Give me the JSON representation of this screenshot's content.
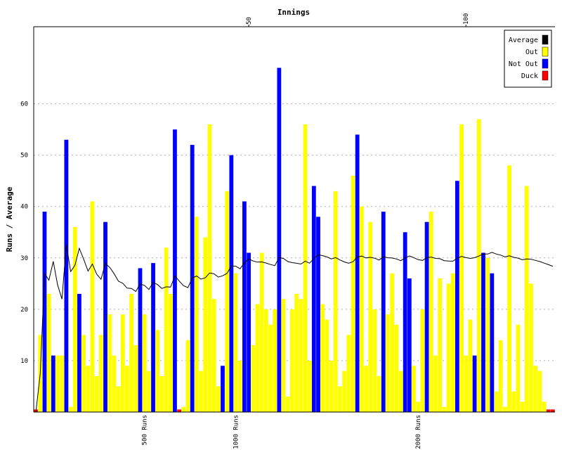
{
  "chart_data": {
    "type": "bar",
    "title": "Innings",
    "ylabel": "Runs / Average",
    "xlabel": "",
    "ylim": [
      0,
      75
    ],
    "yticks": [
      10,
      20,
      30,
      40,
      50,
      60
    ],
    "top_axis_ticks": [
      50,
      100
    ],
    "bottom_axis_markers": [
      {
        "label": "500 Runs",
        "innings": 26
      },
      {
        "label": "1000 Runs",
        "innings": 47
      },
      {
        "label": "2000 Runs",
        "innings": 89
      }
    ],
    "grid": true,
    "legend_position": "top-right",
    "legend": [
      {
        "label": "Average",
        "color": "#000000"
      },
      {
        "label": "Out",
        "color": "#ffff00"
      },
      {
        "label": "Not Out",
        "color": "#0000ff"
      },
      {
        "label": "Duck",
        "color": "#ff0000"
      }
    ],
    "colors": {
      "Out": "#ffff00",
      "Not Out": "#0000ff",
      "Duck": "#ff0000",
      "Average": "#000000"
    },
    "innings": [
      {
        "runs": 0.5,
        "status": "Duck"
      },
      {
        "runs": 15,
        "status": "Out"
      },
      {
        "runs": 39,
        "status": "Not Out"
      },
      {
        "runs": 23,
        "status": "Out"
      },
      {
        "runs": 11,
        "status": "Not Out"
      },
      {
        "runs": 11,
        "status": "Out"
      },
      {
        "runs": 11,
        "status": "Out"
      },
      {
        "runs": 53,
        "status": "Not Out"
      },
      {
        "runs": 1,
        "status": "Out"
      },
      {
        "runs": 36,
        "status": "Out"
      },
      {
        "runs": 23,
        "status": "Not Out"
      },
      {
        "runs": 15,
        "status": "Out"
      },
      {
        "runs": 9,
        "status": "Out"
      },
      {
        "runs": 41,
        "status": "Out"
      },
      {
        "runs": 7,
        "status": "Out"
      },
      {
        "runs": 15,
        "status": "Out"
      },
      {
        "runs": 37,
        "status": "Not Out"
      },
      {
        "runs": 19,
        "status": "Out"
      },
      {
        "runs": 11,
        "status": "Out"
      },
      {
        "runs": 5,
        "status": "Out"
      },
      {
        "runs": 19,
        "status": "Out"
      },
      {
        "runs": 9,
        "status": "Out"
      },
      {
        "runs": 23,
        "status": "Out"
      },
      {
        "runs": 13,
        "status": "Out"
      },
      {
        "runs": 28,
        "status": "Not Out"
      },
      {
        "runs": 19,
        "status": "Out"
      },
      {
        "runs": 8,
        "status": "Out"
      },
      {
        "runs": 29,
        "status": "Not Out"
      },
      {
        "runs": 16,
        "status": "Out"
      },
      {
        "runs": 7,
        "status": "Out"
      },
      {
        "runs": 32,
        "status": "Out"
      },
      {
        "runs": 23,
        "status": "Out"
      },
      {
        "runs": 55,
        "status": "Not Out"
      },
      {
        "runs": 0.5,
        "status": "Duck"
      },
      {
        "runs": 1,
        "status": "Out"
      },
      {
        "runs": 14,
        "status": "Out"
      },
      {
        "runs": 52,
        "status": "Not Out"
      },
      {
        "runs": 38,
        "status": "Out"
      },
      {
        "runs": 8,
        "status": "Out"
      },
      {
        "runs": 34,
        "status": "Out"
      },
      {
        "runs": 56,
        "status": "Out"
      },
      {
        "runs": 22,
        "status": "Out"
      },
      {
        "runs": 5,
        "status": "Out"
      },
      {
        "runs": 9,
        "status": "Not Out"
      },
      {
        "runs": 43,
        "status": "Out"
      },
      {
        "runs": 50,
        "status": "Not Out"
      },
      {
        "runs": 27,
        "status": "Out"
      },
      {
        "runs": 10,
        "status": "Out"
      },
      {
        "runs": 41,
        "status": "Not Out"
      },
      {
        "runs": 31,
        "status": "Not Out"
      },
      {
        "runs": 13,
        "status": "Out"
      },
      {
        "runs": 21,
        "status": "Out"
      },
      {
        "runs": 31,
        "status": "Out"
      },
      {
        "runs": 20,
        "status": "Out"
      },
      {
        "runs": 17,
        "status": "Out"
      },
      {
        "runs": 20,
        "status": "Out"
      },
      {
        "runs": 67,
        "status": "Not Out"
      },
      {
        "runs": 22,
        "status": "Out"
      },
      {
        "runs": 3,
        "status": "Out"
      },
      {
        "runs": 20,
        "status": "Out"
      },
      {
        "runs": 23,
        "status": "Out"
      },
      {
        "runs": 22,
        "status": "Out"
      },
      {
        "runs": 56,
        "status": "Out"
      },
      {
        "runs": 10,
        "status": "Out"
      },
      {
        "runs": 44,
        "status": "Not Out"
      },
      {
        "runs": 38,
        "status": "Not Out"
      },
      {
        "runs": 21,
        "status": "Out"
      },
      {
        "runs": 18,
        "status": "Out"
      },
      {
        "runs": 10,
        "status": "Out"
      },
      {
        "runs": 43,
        "status": "Out"
      },
      {
        "runs": 5,
        "status": "Out"
      },
      {
        "runs": 8,
        "status": "Out"
      },
      {
        "runs": 15,
        "status": "Out"
      },
      {
        "runs": 46,
        "status": "Out"
      },
      {
        "runs": 54,
        "status": "Not Out"
      },
      {
        "runs": 40,
        "status": "Out"
      },
      {
        "runs": 9,
        "status": "Out"
      },
      {
        "runs": 37,
        "status": "Out"
      },
      {
        "runs": 20,
        "status": "Out"
      },
      {
        "runs": 7,
        "status": "Out"
      },
      {
        "runs": 39,
        "status": "Not Out"
      },
      {
        "runs": 19,
        "status": "Out"
      },
      {
        "runs": 27,
        "status": "Out"
      },
      {
        "runs": 17,
        "status": "Out"
      },
      {
        "runs": 8,
        "status": "Out"
      },
      {
        "runs": 35,
        "status": "Not Out"
      },
      {
        "runs": 26,
        "status": "Not Out"
      },
      {
        "runs": 9,
        "status": "Out"
      },
      {
        "runs": 2,
        "status": "Out"
      },
      {
        "runs": 20,
        "status": "Out"
      },
      {
        "runs": 37,
        "status": "Not Out"
      },
      {
        "runs": 39,
        "status": "Out"
      },
      {
        "runs": 11,
        "status": "Out"
      },
      {
        "runs": 26,
        "status": "Out"
      },
      {
        "runs": 1,
        "status": "Out"
      },
      {
        "runs": 25,
        "status": "Out"
      },
      {
        "runs": 27,
        "status": "Out"
      },
      {
        "runs": 45,
        "status": "Not Out"
      },
      {
        "runs": 56,
        "status": "Out"
      },
      {
        "runs": 11,
        "status": "Out"
      },
      {
        "runs": 18,
        "status": "Out"
      },
      {
        "runs": 11,
        "status": "Not Out"
      },
      {
        "runs": 57,
        "status": "Out"
      },
      {
        "runs": 31,
        "status": "Not Out"
      },
      {
        "runs": 30,
        "status": "Out"
      },
      {
        "runs": 27,
        "status": "Not Out"
      },
      {
        "runs": 4,
        "status": "Out"
      },
      {
        "runs": 14,
        "status": "Out"
      },
      {
        "runs": 1,
        "status": "Out"
      },
      {
        "runs": 48,
        "status": "Out"
      },
      {
        "runs": 4,
        "status": "Out"
      },
      {
        "runs": 17,
        "status": "Out"
      },
      {
        "runs": 2,
        "status": "Out"
      },
      {
        "runs": 44,
        "status": "Out"
      },
      {
        "runs": 25,
        "status": "Out"
      },
      {
        "runs": 9,
        "status": "Out"
      },
      {
        "runs": 8,
        "status": "Out"
      },
      {
        "runs": 2,
        "status": "Out"
      },
      {
        "runs": 0.5,
        "status": "Duck"
      },
      {
        "runs": 0.5,
        "status": "Duck"
      }
    ]
  }
}
